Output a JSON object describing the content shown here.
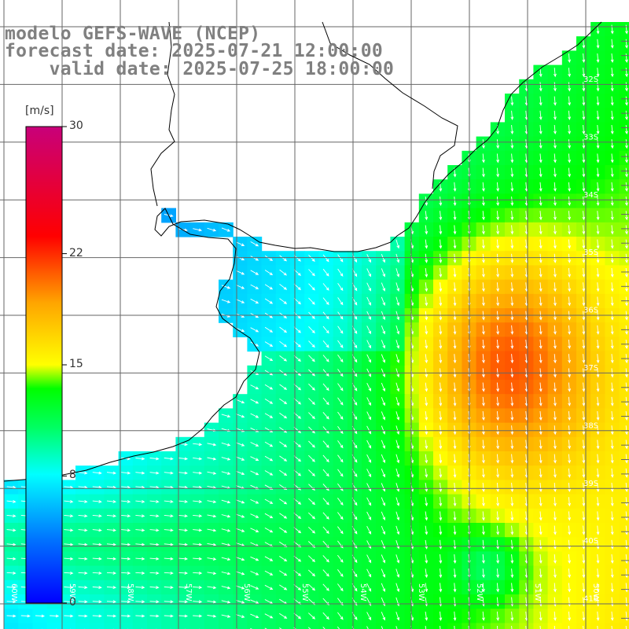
{
  "title": {
    "line1": "modelo GEFS-WAVE (NCEP)",
    "line2": "forecast date: 2025-07-21 12:00:00",
    "line3": "    valid date: 2025-07-25 18:00:00"
  },
  "colorbar": {
    "unit": "[m/s]",
    "ticks": [
      "30",
      "22",
      "15",
      "8",
      "0"
    ],
    "tick_values": [
      30,
      22,
      15,
      8,
      0
    ],
    "range": [
      0,
      30
    ]
  },
  "map": {
    "lat_labels": [
      "32S",
      "33S",
      "34S",
      "35S",
      "36S",
      "37S",
      "38S",
      "39S",
      "40S",
      "41S"
    ],
    "lon_labels": [
      "60W",
      "59W",
      "58W",
      "57W",
      "56W",
      "55W",
      "54W",
      "53W",
      "52W",
      "51W",
      "50W"
    ],
    "field": "wind speed",
    "colors": {
      "land": "#ffffff",
      "coast": "#000000",
      "grid": "#666666",
      "arrows": "#ffffff"
    }
  }
}
